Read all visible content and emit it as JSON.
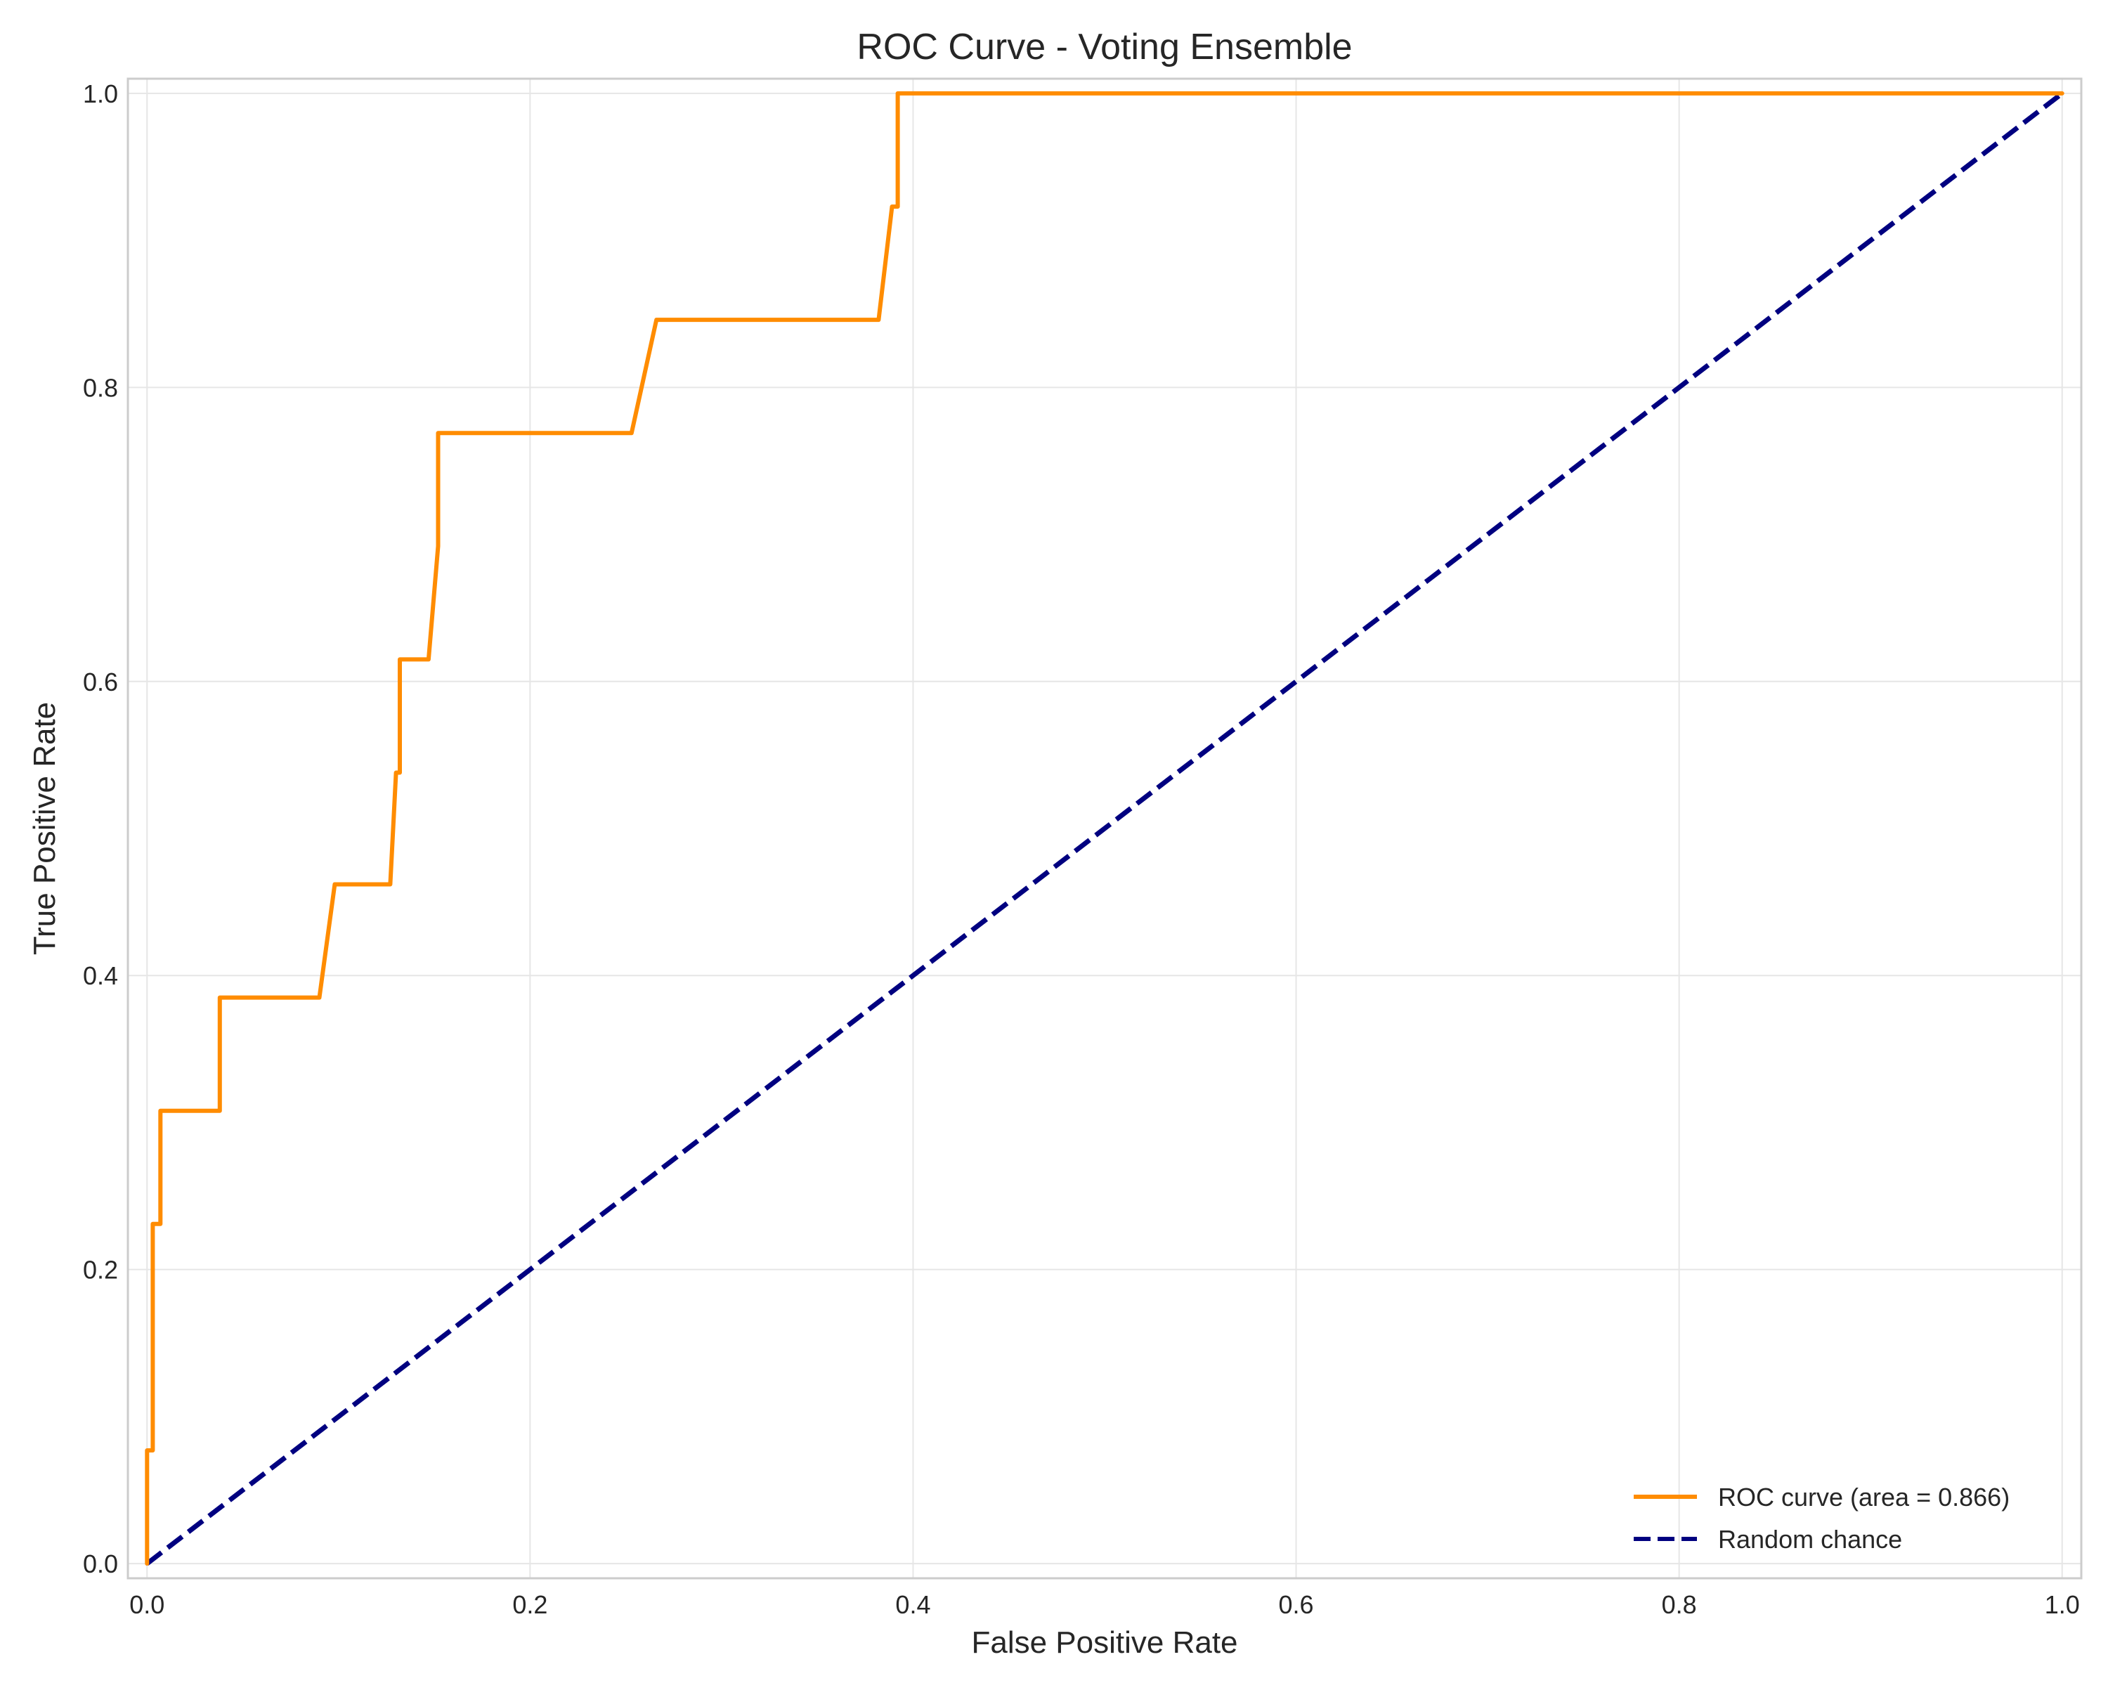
{
  "chart_data": {
    "type": "line",
    "title": "ROC Curve - Voting Ensemble",
    "xlabel": "False Positive Rate",
    "ylabel": "True Positive Rate",
    "xlim": [
      -0.01,
      1.01
    ],
    "ylim": [
      -0.01,
      1.01
    ],
    "x_ticks": [
      0.0,
      0.2,
      0.4,
      0.6,
      0.8,
      1.0
    ],
    "x_tick_labels": [
      "0.0",
      "0.2",
      "0.4",
      "0.6",
      "0.8",
      "1.0"
    ],
    "y_ticks": [
      0.0,
      0.2,
      0.4,
      0.6,
      0.8,
      1.0
    ],
    "y_tick_labels": [
      "0.0",
      "0.2",
      "0.4",
      "0.6",
      "0.8",
      "1.0"
    ],
    "grid": true,
    "legend_position": "lower-right",
    "series": [
      {
        "name": "ROC curve (area = 0.866)",
        "color": "#ff8c00",
        "style": "solid",
        "x": [
          0.0,
          0.0,
          0.003,
          0.003,
          0.007,
          0.007,
          0.038,
          0.038,
          0.09,
          0.098,
          0.127,
          0.13,
          0.132,
          0.132,
          0.147,
          0.152,
          0.152,
          0.253,
          0.266,
          0.382,
          0.389,
          0.392,
          0.392,
          1.0
        ],
        "y": [
          0.0,
          0.077,
          0.077,
          0.231,
          0.231,
          0.308,
          0.308,
          0.385,
          0.385,
          0.462,
          0.462,
          0.538,
          0.538,
          0.615,
          0.615,
          0.692,
          0.769,
          0.769,
          0.846,
          0.846,
          0.923,
          0.923,
          1.0,
          1.0
        ]
      },
      {
        "name": "Random chance",
        "color": "#000080",
        "style": "dashed",
        "x": [
          0.0,
          1.0
        ],
        "y": [
          0.0,
          1.0
        ]
      }
    ]
  }
}
